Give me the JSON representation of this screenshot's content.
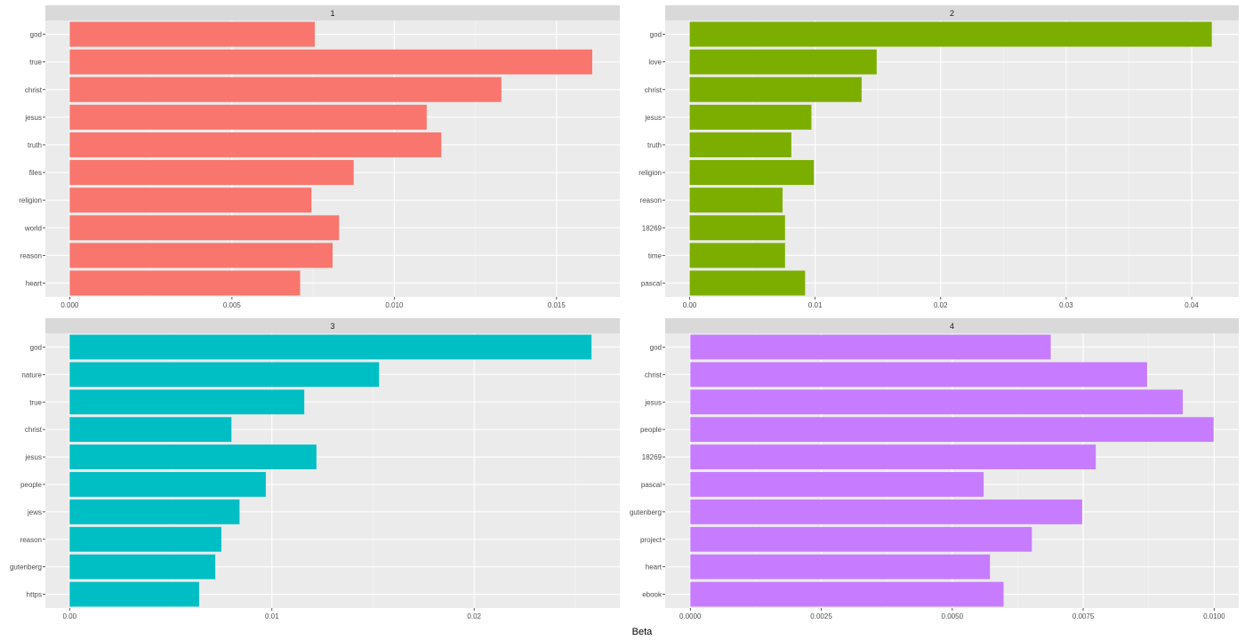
{
  "chart_data": {
    "type": "bar",
    "orientation": "horizontal",
    "layout": "faceted-2x2",
    "xlabel": "Beta",
    "ylabel": "",
    "panel_background": "#ebebeb",
    "strip_background": "#d9d9d9",
    "panels": [
      {
        "strip": "1",
        "color": "#F8766D",
        "categories": [
          "god",
          "true",
          "christ",
          "jesus",
          "truth",
          "files",
          "religion",
          "world",
          "reason",
          "heart"
        ],
        "values": [
          0.00755,
          0.0161,
          0.0133,
          0.011,
          0.01145,
          0.00875,
          0.00745,
          0.0083,
          0.0081,
          0.0071
        ],
        "xlim": [
          -0.00075,
          0.01695
        ],
        "xticks": [
          0,
          0.005,
          0.01,
          0.015
        ],
        "xtick_labels": [
          "0.000",
          "0.005",
          "0.010",
          "0.015"
        ]
      },
      {
        "strip": "2",
        "color": "#7CAE00",
        "categories": [
          "god",
          "love",
          "christ",
          "jesus",
          "truth",
          "religion",
          "reason",
          "18269",
          "time",
          "pascal"
        ],
        "values": [
          0.0416,
          0.0149,
          0.0137,
          0.0097,
          0.0081,
          0.0099,
          0.0074,
          0.0076,
          0.0076,
          0.0092
        ],
        "xlim": [
          -0.00195,
          0.04375
        ],
        "xticks": [
          0,
          0.01,
          0.02,
          0.03,
          0.04
        ],
        "xtick_labels": [
          "0.00",
          "0.01",
          "0.02",
          "0.03",
          "0.04"
        ]
      },
      {
        "strip": "3",
        "color": "#00BFC4",
        "categories": [
          "god",
          "nature",
          "true",
          "christ",
          "jesus",
          "people",
          "jews",
          "reason",
          "gutenberg",
          "https"
        ],
        "values": [
          0.0258,
          0.0153,
          0.0116,
          0.008,
          0.0122,
          0.0097,
          0.0084,
          0.0075,
          0.0072,
          0.0064
        ],
        "xlim": [
          -0.0012,
          0.0272
        ],
        "xticks": [
          0,
          0.01,
          0.02
        ],
        "xtick_labels": [
          "0.00",
          "0.01",
          "0.02"
        ]
      },
      {
        "strip": "4",
        "color": "#C77CFF",
        "categories": [
          "god",
          "christ",
          "jesus",
          "people",
          "18269",
          "pascal",
          "gutenberg",
          "project",
          "heart",
          "ebook"
        ],
        "values": [
          0.00688,
          0.00872,
          0.0094,
          0.00999,
          0.00774,
          0.0056,
          0.00748,
          0.00652,
          0.00572,
          0.00598
        ],
        "xlim": [
          -0.00048,
          0.01047
        ],
        "xticks": [
          0,
          0.0025,
          0.005,
          0.0075,
          0.01
        ],
        "xtick_labels": [
          "0.0000",
          "0.0025",
          "0.0050",
          "0.0075",
          "0.0100"
        ]
      }
    ]
  }
}
